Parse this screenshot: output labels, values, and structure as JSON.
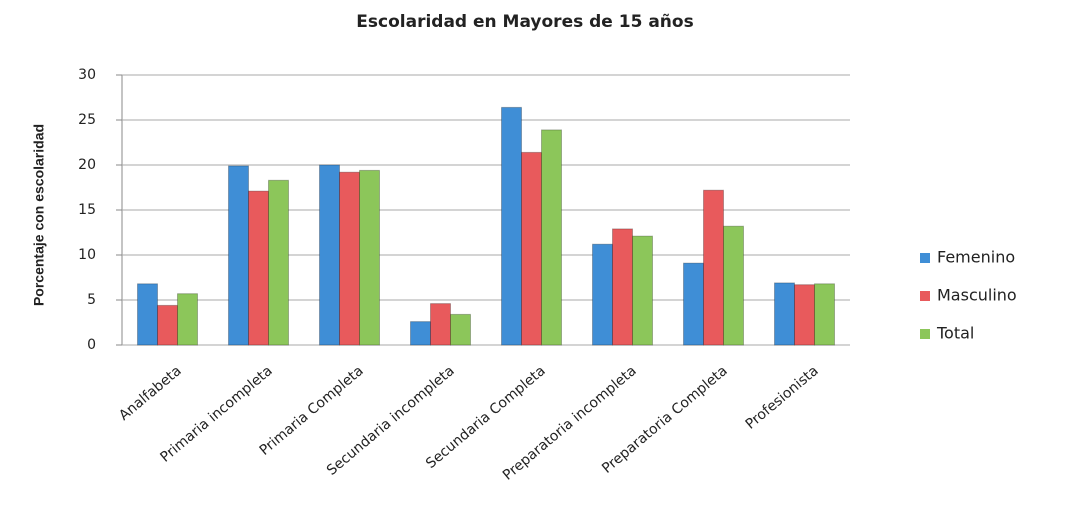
{
  "chart_data": {
    "type": "bar",
    "title": "Escolaridad en Mayores de 15 años",
    "y_label": "Porcentaje con escolaridad",
    "categories": [
      "Analfabeta",
      "Primaria incompleta",
      "Primaria Completa",
      "Secundaria incompleta",
      "Secundaria Completa",
      "Preparatoria incompleta",
      "Preparatoria Completa",
      "Profesionista"
    ],
    "series": [
      {
        "name": "Femenino",
        "color": "#3f8ed6",
        "values": [
          6.8,
          19.9,
          20.0,
          2.6,
          26.4,
          11.2,
          9.1,
          6.9
        ]
      },
      {
        "name": "Masculino",
        "color": "#e85a5c",
        "values": [
          4.4,
          17.1,
          19.2,
          4.6,
          21.4,
          12.9,
          17.2,
          6.7
        ]
      },
      {
        "name": "Total",
        "color": "#8cc65a",
        "values": [
          5.7,
          18.3,
          19.4,
          3.4,
          23.9,
          12.1,
          13.2,
          6.8
        ]
      }
    ],
    "ylim": [
      0,
      30
    ],
    "yticks": [
      0,
      5,
      10,
      15,
      20,
      25,
      30
    ],
    "grid": true,
    "legend": "right"
  }
}
